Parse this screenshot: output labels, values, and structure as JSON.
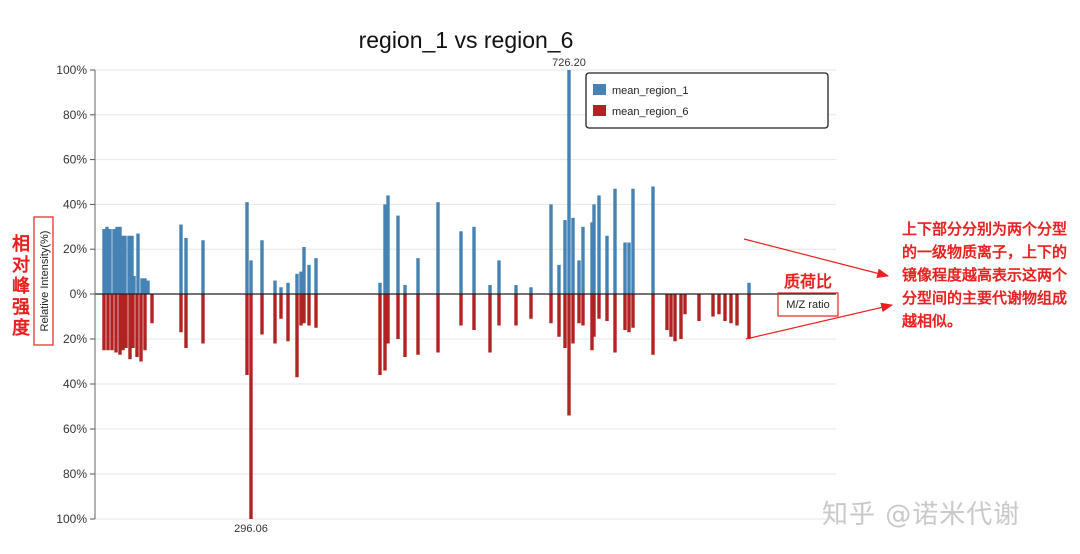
{
  "chart_data": {
    "type": "bar",
    "mirror": true,
    "title": "region_1 vs region_6",
    "ylabel": "Relative Intensity(%)",
    "xlabel": "M/Z ratio",
    "ylim": [
      -100,
      100
    ],
    "yticks": [
      "100%",
      "80%",
      "60%",
      "40%",
      "20%",
      "0%",
      "20%",
      "40%",
      "60%",
      "80%",
      "100%"
    ],
    "legend": {
      "position": "top-right"
    },
    "series": [
      {
        "name": "mean_region_1",
        "color": "#4682b4",
        "direction": "up",
        "peaks": [
          {
            "x": 104,
            "y": 29
          },
          {
            "x": 107,
            "y": 30
          },
          {
            "x": 110,
            "y": 29
          },
          {
            "x": 114,
            "y": 29
          },
          {
            "x": 117,
            "y": 30
          },
          {
            "x": 120,
            "y": 30
          },
          {
            "x": 122,
            "y": 26
          },
          {
            "x": 125,
            "y": 26
          },
          {
            "x": 129,
            "y": 26
          },
          {
            "x": 132,
            "y": 26
          },
          {
            "x": 134,
            "y": 8
          },
          {
            "x": 138,
            "y": 27
          },
          {
            "x": 142,
            "y": 7
          },
          {
            "x": 145,
            "y": 7
          },
          {
            "x": 148,
            "y": 6
          },
          {
            "x": 181,
            "y": 31
          },
          {
            "x": 186,
            "y": 25
          },
          {
            "x": 203,
            "y": 24
          },
          {
            "x": 247,
            "y": 41
          },
          {
            "x": 251,
            "y": 15
          },
          {
            "x": 262,
            "y": 24
          },
          {
            "x": 275,
            "y": 6
          },
          {
            "x": 281,
            "y": 3
          },
          {
            "x": 288,
            "y": 5
          },
          {
            "x": 297,
            "y": 9
          },
          {
            "x": 301,
            "y": 10
          },
          {
            "x": 304,
            "y": 21
          },
          {
            "x": 309,
            "y": 13
          },
          {
            "x": 316,
            "y": 16
          },
          {
            "x": 380,
            "y": 5
          },
          {
            "x": 385,
            "y": 40
          },
          {
            "x": 388,
            "y": 44
          },
          {
            "x": 398,
            "y": 35
          },
          {
            "x": 405,
            "y": 4
          },
          {
            "x": 418,
            "y": 16
          },
          {
            "x": 438,
            "y": 41
          },
          {
            "x": 461,
            "y": 28
          },
          {
            "x": 474,
            "y": 30
          },
          {
            "x": 490,
            "y": 4
          },
          {
            "x": 499,
            "y": 15
          },
          {
            "x": 516,
            "y": 4
          },
          {
            "x": 531,
            "y": 3
          },
          {
            "x": 551,
            "y": 40
          },
          {
            "x": 559,
            "y": 13
          },
          {
            "x": 565,
            "y": 33
          },
          {
            "x": 569,
            "y": 100
          },
          {
            "x": 573,
            "y": 34
          },
          {
            "x": 579,
            "y": 15
          },
          {
            "x": 583,
            "y": 30
          },
          {
            "x": 592,
            "y": 32
          },
          {
            "x": 594,
            "y": 40
          },
          {
            "x": 599,
            "y": 44
          },
          {
            "x": 607,
            "y": 26
          },
          {
            "x": 615,
            "y": 47
          },
          {
            "x": 625,
            "y": 23
          },
          {
            "x": 629,
            "y": 23
          },
          {
            "x": 633,
            "y": 47
          },
          {
            "x": 653,
            "y": 48
          },
          {
            "x": 749,
            "y": 5
          }
        ]
      },
      {
        "name": "mean_region_6",
        "color": "#b22222",
        "direction": "down",
        "peaks": [
          {
            "x": 104,
            "y": 25
          },
          {
            "x": 108,
            "y": 25
          },
          {
            "x": 112,
            "y": 25
          },
          {
            "x": 116,
            "y": 26
          },
          {
            "x": 120,
            "y": 27
          },
          {
            "x": 123,
            "y": 25
          },
          {
            "x": 126,
            "y": 24
          },
          {
            "x": 130,
            "y": 29
          },
          {
            "x": 133,
            "y": 24
          },
          {
            "x": 137,
            "y": 28
          },
          {
            "x": 141,
            "y": 30
          },
          {
            "x": 145,
            "y": 25
          },
          {
            "x": 152,
            "y": 13
          },
          {
            "x": 181,
            "y": 17
          },
          {
            "x": 186,
            "y": 24
          },
          {
            "x": 203,
            "y": 22
          },
          {
            "x": 247,
            "y": 36
          },
          {
            "x": 251,
            "y": 100
          },
          {
            "x": 262,
            "y": 18
          },
          {
            "x": 275,
            "y": 22
          },
          {
            "x": 281,
            "y": 11
          },
          {
            "x": 288,
            "y": 21
          },
          {
            "x": 297,
            "y": 37
          },
          {
            "x": 301,
            "y": 14
          },
          {
            "x": 304,
            "y": 13
          },
          {
            "x": 309,
            "y": 14
          },
          {
            "x": 316,
            "y": 15
          },
          {
            "x": 380,
            "y": 36
          },
          {
            "x": 385,
            "y": 34
          },
          {
            "x": 388,
            "y": 22
          },
          {
            "x": 398,
            "y": 20
          },
          {
            "x": 405,
            "y": 28
          },
          {
            "x": 418,
            "y": 27
          },
          {
            "x": 438,
            "y": 26
          },
          {
            "x": 461,
            "y": 14
          },
          {
            "x": 474,
            "y": 16
          },
          {
            "x": 490,
            "y": 26
          },
          {
            "x": 499,
            "y": 14
          },
          {
            "x": 516,
            "y": 14
          },
          {
            "x": 531,
            "y": 11
          },
          {
            "x": 551,
            "y": 13
          },
          {
            "x": 559,
            "y": 19
          },
          {
            "x": 565,
            "y": 24
          },
          {
            "x": 569,
            "y": 54
          },
          {
            "x": 573,
            "y": 22
          },
          {
            "x": 579,
            "y": 13
          },
          {
            "x": 583,
            "y": 14
          },
          {
            "x": 592,
            "y": 25
          },
          {
            "x": 594,
            "y": 19
          },
          {
            "x": 599,
            "y": 11
          },
          {
            "x": 607,
            "y": 12
          },
          {
            "x": 615,
            "y": 26
          },
          {
            "x": 625,
            "y": 16
          },
          {
            "x": 629,
            "y": 17
          },
          {
            "x": 633,
            "y": 15
          },
          {
            "x": 653,
            "y": 27
          },
          {
            "x": 667,
            "y": 16
          },
          {
            "x": 671,
            "y": 19
          },
          {
            "x": 675,
            "y": 21
          },
          {
            "x": 681,
            "y": 20
          },
          {
            "x": 685,
            "y": 9
          },
          {
            "x": 699,
            "y": 12
          },
          {
            "x": 713,
            "y": 10
          },
          {
            "x": 719,
            "y": 9
          },
          {
            "x": 725,
            "y": 12
          },
          {
            "x": 731,
            "y": 13
          },
          {
            "x": 737,
            "y": 14
          },
          {
            "x": 749,
            "y": 20
          }
        ]
      }
    ],
    "peak_labels": [
      {
        "text": "726.20",
        "series": "mean_region_1",
        "x": 569
      },
      {
        "text": "296.06",
        "series": "mean_region_6",
        "x": 251
      }
    ]
  },
  "annotations": {
    "y_axis_cn": "相对峰强度",
    "x_axis_cn": "质荷比",
    "explanation": "上下部分分别为两个分型的一级物质离子，上下的镜像程度越高表示这两个分型间的主要代谢物组成越相似。"
  },
  "watermark": "知乎 @诺米代谢"
}
